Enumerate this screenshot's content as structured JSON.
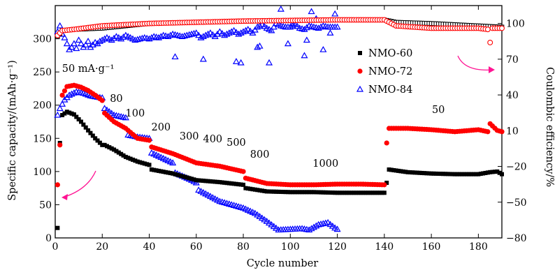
{
  "chart_data": {
    "type": "scatter",
    "xlabel": "Cycle number",
    "ylabel_left": "Specific capacity/(mAh·g⁻¹)",
    "ylabel_right": "Coulombic efficiency/%",
    "xlim": [
      0,
      190
    ],
    "ylim_left": [
      0,
      350
    ],
    "ylim_right": [
      -80,
      115
    ],
    "x_ticks": [
      0,
      20,
      40,
      60,
      80,
      100,
      120,
      140,
      160,
      180
    ],
    "y_left_ticks": [
      0,
      50,
      100,
      150,
      200,
      250,
      300
    ],
    "y_right_ticks": [
      -80,
      -50,
      -20,
      10,
      40,
      70,
      100
    ],
    "legend_position": "right-middle",
    "series": [
      {
        "name": "NMO-60",
        "color": "#000000",
        "marker": "square"
      },
      {
        "name": "NMO-72",
        "color": "#ff0000",
        "marker": "circle"
      },
      {
        "name": "NMO-84",
        "color": "#0000ff",
        "marker": "triangle"
      }
    ],
    "capacity_segments": {
      "NMO-60": [
        [
          [
            1,
            15
          ],
          [
            2,
            143
          ],
          [
            3,
            185
          ],
          [
            5,
            190
          ],
          [
            8,
            186
          ],
          [
            11,
            175
          ],
          [
            14,
            162
          ],
          [
            17,
            150
          ],
          [
            20,
            140
          ]
        ],
        [
          [
            21,
            140
          ],
          [
            25,
            133
          ],
          [
            30,
            122
          ],
          [
            35,
            115
          ],
          [
            40,
            110
          ]
        ],
        [
          [
            41,
            103
          ],
          [
            50,
            97
          ],
          [
            60,
            87
          ],
          [
            70,
            84
          ],
          [
            80,
            80
          ]
        ],
        [
          [
            81,
            75
          ],
          [
            90,
            70
          ],
          [
            100,
            69
          ],
          [
            110,
            69
          ],
          [
            120,
            68
          ],
          [
            130,
            68
          ],
          [
            140,
            68
          ]
        ],
        [
          [
            141,
            83
          ],
          [
            142,
            103
          ],
          [
            150,
            99
          ],
          [
            160,
            97
          ],
          [
            170,
            96
          ],
          [
            180,
            96
          ],
          [
            185,
            99
          ],
          [
            188,
            100
          ],
          [
            190,
            96
          ]
        ]
      ],
      "NMO-72": [
        [
          [
            1,
            80
          ],
          [
            2,
            140
          ],
          [
            3,
            215
          ],
          [
            5,
            228
          ],
          [
            8,
            230
          ],
          [
            11,
            227
          ],
          [
            14,
            222
          ],
          [
            17,
            215
          ],
          [
            20,
            207
          ]
        ],
        [
          [
            21,
            188
          ],
          [
            25,
            175
          ],
          [
            30,
            165
          ],
          [
            35,
            150
          ],
          [
            40,
            147
          ]
        ],
        [
          [
            41,
            137
          ],
          [
            50,
            127
          ],
          [
            60,
            113
          ],
          [
            70,
            108
          ],
          [
            80,
            100
          ]
        ],
        [
          [
            81,
            90
          ],
          [
            90,
            82
          ],
          [
            100,
            80
          ],
          [
            110,
            80
          ],
          [
            120,
            81
          ],
          [
            130,
            81
          ],
          [
            140,
            80
          ]
        ],
        [
          [
            141,
            143
          ],
          [
            142,
            165
          ],
          [
            150,
            165
          ],
          [
            160,
            163
          ],
          [
            170,
            160
          ],
          [
            180,
            163
          ],
          [
            184,
            160
          ],
          [
            185,
            172
          ],
          [
            188,
            162
          ],
          [
            190,
            160
          ]
        ]
      ],
      "NMO-84": [
        [
          [
            1,
            185
          ],
          [
            2,
            195
          ],
          [
            4,
            208
          ],
          [
            6,
            215
          ],
          [
            9,
            220
          ],
          [
            12,
            218
          ],
          [
            15,
            214
          ],
          [
            18,
            212
          ],
          [
            20,
            211
          ]
        ],
        [
          [
            21,
            195
          ],
          [
            25,
            185
          ],
          [
            30,
            181
          ]
        ],
        [
          [
            31,
            155
          ],
          [
            35,
            152
          ],
          [
            40,
            150
          ]
        ],
        [
          [
            41,
            128
          ],
          [
            50,
            113
          ]
        ],
        [
          [
            51,
            98
          ],
          [
            58,
            87
          ],
          [
            60,
            83
          ]
        ],
        [
          [
            61,
            72
          ],
          [
            70,
            55
          ],
          [
            80,
            45
          ],
          [
            85,
            37
          ],
          [
            90,
            25
          ],
          [
            95,
            12
          ],
          [
            100,
            13
          ],
          [
            105,
            14
          ],
          [
            108,
            12
          ],
          [
            112,
            20
          ],
          [
            116,
            23
          ],
          [
            119,
            15
          ],
          [
            120,
            13
          ]
        ]
      ]
    },
    "efficiency_segments": {
      "NMO-60": [
        [
          [
            1,
            89
          ],
          [
            3,
            94
          ],
          [
            8,
            95
          ],
          [
            20,
            96
          ],
          [
            40,
            100
          ],
          [
            80,
            102
          ],
          [
            120,
            103
          ],
          [
            140,
            103
          ],
          [
            145,
            101
          ],
          [
            160,
            100
          ],
          [
            180,
            98
          ],
          [
            190,
            97
          ]
        ]
      ],
      "NMO-72": [
        [
          [
            1,
            90
          ],
          [
            3,
            94
          ],
          [
            8,
            95
          ],
          [
            20,
            98
          ],
          [
            40,
            100
          ],
          [
            80,
            102
          ],
          [
            120,
            103
          ],
          [
            140,
            103
          ],
          [
            145,
            98
          ],
          [
            160,
            96
          ],
          [
            180,
            96
          ],
          [
            184,
            95
          ],
          [
            185,
            84
          ],
          [
            186,
            96
          ],
          [
            190,
            96
          ]
        ]
      ],
      "NMO-84": [
        [
          [
            1,
            93
          ],
          [
            2,
            98
          ],
          [
            3,
            91
          ],
          [
            4,
            88
          ],
          [
            5,
            83
          ],
          [
            6,
            78
          ],
          [
            7,
            80
          ],
          [
            8,
            83
          ],
          [
            9,
            79
          ],
          [
            10,
            86
          ],
          [
            11,
            83
          ],
          [
            12,
            80
          ],
          [
            13,
            82
          ],
          [
            14,
            85
          ],
          [
            15,
            80
          ],
          [
            16,
            82
          ],
          [
            17,
            84
          ],
          [
            18,
            83
          ],
          [
            19,
            85
          ],
          [
            20,
            86
          ],
          [
            22,
            88
          ],
          [
            24,
            86
          ],
          [
            26,
            89
          ],
          [
            28,
            87
          ],
          [
            30,
            90
          ],
          [
            32,
            88
          ],
          [
            34,
            86
          ],
          [
            36,
            87
          ],
          [
            38,
            88
          ],
          [
            40,
            87
          ],
          [
            42,
            89
          ],
          [
            44,
            88
          ],
          [
            46,
            90
          ],
          [
            48,
            89
          ],
          [
            50,
            91
          ],
          [
            52,
            90
          ],
          [
            54,
            89
          ],
          [
            56,
            90
          ],
          [
            58,
            91
          ],
          [
            60,
            92
          ],
          [
            62,
            88
          ],
          [
            64,
            90
          ],
          [
            66,
            92
          ],
          [
            68,
            89
          ],
          [
            70,
            93
          ],
          [
            72,
            90
          ],
          [
            74,
            92
          ],
          [
            76,
            94
          ],
          [
            78,
            91
          ],
          [
            80,
            93
          ],
          [
            82,
            95
          ],
          [
            84,
            92
          ],
          [
            86,
            97
          ],
          [
            88,
            99
          ],
          [
            90,
            96
          ],
          [
            92,
            94
          ],
          [
            94,
            100
          ],
          [
            96,
            98
          ],
          [
            98,
            97
          ],
          [
            100,
            97
          ],
          [
            102,
            99
          ],
          [
            104,
            96
          ],
          [
            106,
            95
          ],
          [
            108,
            98
          ],
          [
            110,
            97
          ],
          [
            112,
            96
          ],
          [
            114,
            98
          ],
          [
            116,
            97
          ],
          [
            118,
            97
          ],
          [
            120,
            97
          ]
        ],
        [
          [
            51,
            72
          ],
          [
            63,
            70
          ],
          [
            77,
            68
          ],
          [
            79,
            67
          ],
          [
            86,
            80
          ],
          [
            87,
            81
          ],
          [
            91,
            67
          ],
          [
            96,
            112
          ],
          [
            99,
            83
          ],
          [
            101,
            100
          ],
          [
            106,
            73
          ],
          [
            107,
            86
          ],
          [
            109,
            110
          ],
          [
            111,
            104
          ],
          [
            114,
            78
          ],
          [
            117,
            92
          ],
          [
            119,
            108
          ]
        ]
      ]
    },
    "annotations": [
      {
        "text": "50 mA·g⁻¹",
        "x": 14,
        "y": 250
      },
      {
        "text": "80",
        "x": 26,
        "y": 205
      },
      {
        "text": "100",
        "x": 34,
        "y": 183
      },
      {
        "text": "200",
        "x": 45,
        "y": 162
      },
      {
        "text": "300",
        "x": 57,
        "y": 148
      },
      {
        "text": "400",
        "x": 67,
        "y": 144
      },
      {
        "text": "500",
        "x": 77,
        "y": 139
      },
      {
        "text": "800",
        "x": 87,
        "y": 121
      },
      {
        "text": "1000",
        "x": 115,
        "y": 107
      },
      {
        "text": "50",
        "x": 163,
        "y": 188
      }
    ],
    "arrows": [
      {
        "name": "arrow-to-left-axis",
        "direction": "left",
        "color": "#ff1493"
      },
      {
        "name": "arrow-to-right-axis",
        "direction": "right",
        "color": "#ff1493"
      }
    ]
  }
}
